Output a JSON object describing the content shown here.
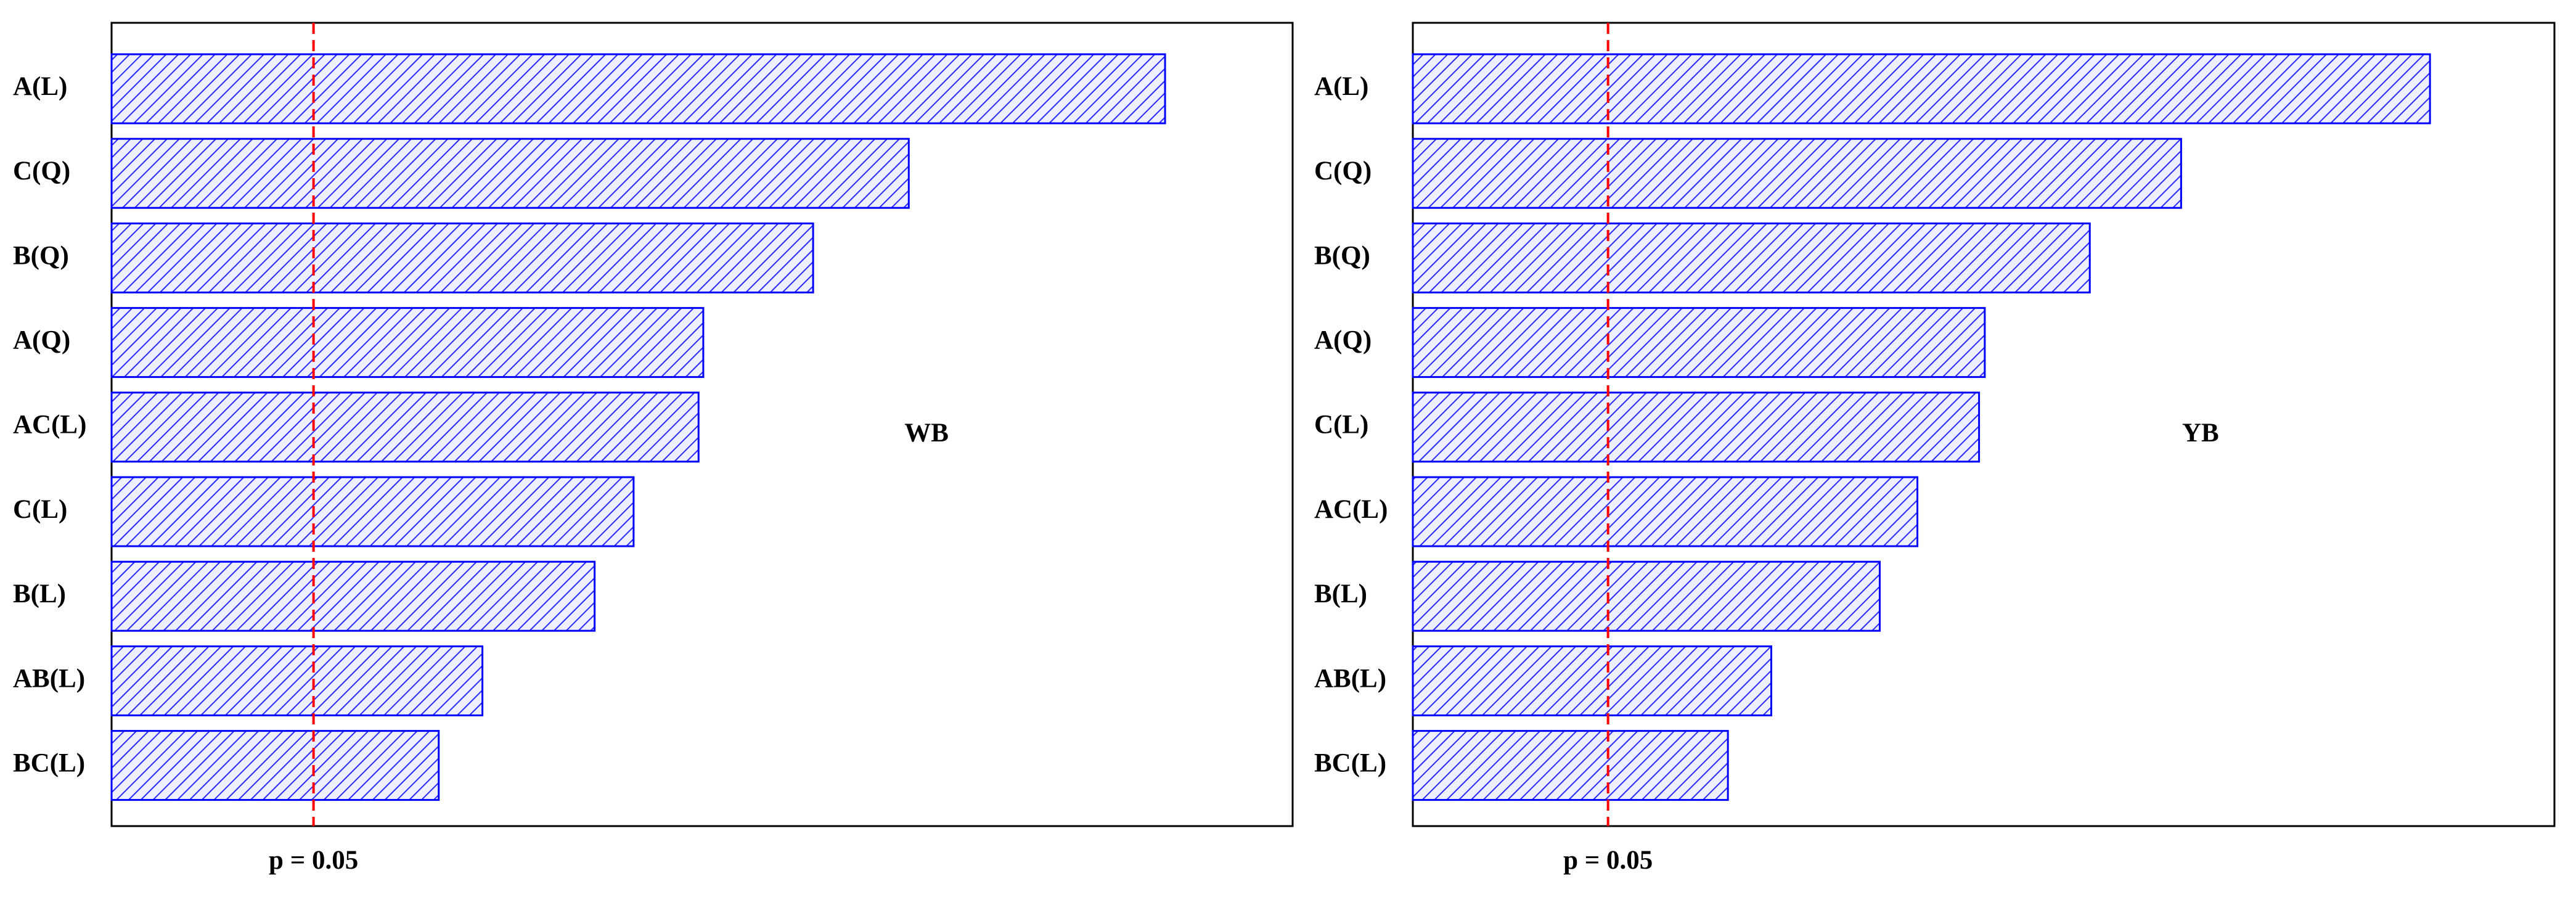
{
  "chart_data": [
    {
      "type": "bar",
      "orientation": "horizontal",
      "annotation": "WB",
      "categories": [
        "A(L)",
        "C(Q)",
        "B(Q)",
        "A(Q)",
        "AC(L)",
        "C(L)",
        "B(L)",
        "AB(L)",
        "BC(L)"
      ],
      "values": [
        89.2,
        67.5,
        59.4,
        50.1,
        49.7,
        44.2,
        40.9,
        31.4,
        27.7
      ],
      "color": "#0000ff",
      "xlim": [
        0,
        100
      ],
      "reference_line": {
        "value": 17.1,
        "label": "p = 0.05",
        "color": "#ff0000"
      }
    },
    {
      "type": "bar",
      "orientation": "horizontal",
      "annotation": "YB",
      "categories": [
        "A(L)",
        "C(Q)",
        "B(Q)",
        "A(Q)",
        "C(L)",
        "AC(L)",
        "B(L)",
        "AB(L)",
        "BC(L)"
      ],
      "values": [
        89.1,
        67.3,
        59.3,
        50.1,
        49.6,
        44.2,
        40.9,
        31.4,
        27.6
      ],
      "color": "#0000ff",
      "xlim": [
        0,
        100
      ],
      "reference_line": {
        "value": 17.1,
        "label": "p = 0.05",
        "color": "#ff0000"
      }
    }
  ]
}
